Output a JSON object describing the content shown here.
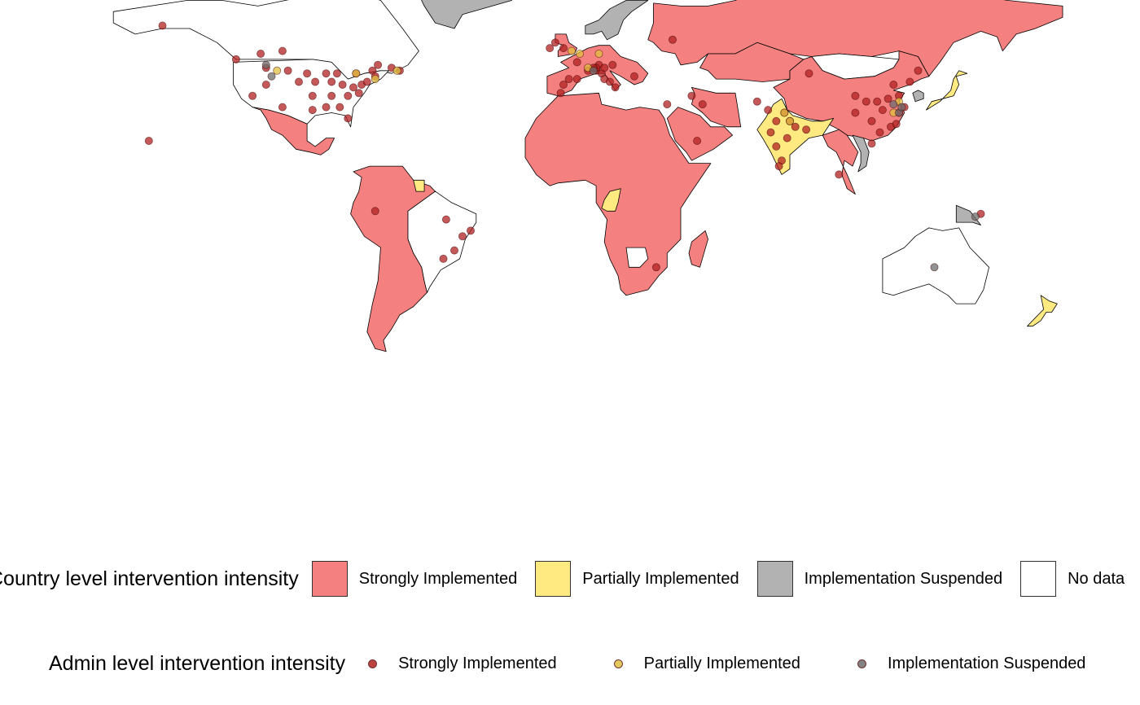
{
  "colors": {
    "strong": "#f58080",
    "partial": "#ffe981",
    "suspended": "#b2b2b2",
    "nodata": "#ffffff",
    "dot_strong": "#b22222",
    "dot_partial": "#e0c040",
    "dot_suspended": "#6e6e6e"
  },
  "legend_country": {
    "title": "Country level intervention intensity",
    "items": [
      {
        "label": "Strongly Implemented",
        "color": "#f58080"
      },
      {
        "label": "Partially Implemented",
        "color": "#ffe981"
      },
      {
        "label": "Implementation Suspended",
        "color": "#b2b2b2"
      },
      {
        "label": "No data",
        "color": "#ffffff"
      }
    ]
  },
  "legend_admin": {
    "title": "Admin level intervention intensity",
    "items": [
      {
        "label": "Strongly Implemented",
        "color": "#b22222"
      },
      {
        "label": "Partially Implemented",
        "color": "#e0c040"
      },
      {
        "label": "Implementation Suspended",
        "color": "#6e6e6e"
      }
    ]
  },
  "countries": [
    {
      "name": "Greenland",
      "status": "suspended"
    },
    {
      "name": "Russia",
      "status": "strong"
    },
    {
      "name": "China",
      "status": "strong"
    },
    {
      "name": "India",
      "status": "partial"
    },
    {
      "name": "Mongolia",
      "status": "nodata"
    },
    {
      "name": "Kazakhstan",
      "status": "strong"
    },
    {
      "name": "Iran",
      "status": "strong"
    },
    {
      "name": "Saudi Arabia",
      "status": "strong"
    },
    {
      "name": "Africa (most)",
      "status": "strong"
    },
    {
      "name": "Congo",
      "status": "partial"
    },
    {
      "name": "Namibia/Botswana area",
      "status": "nodata"
    },
    {
      "name": "Madagascar",
      "status": "strong"
    },
    {
      "name": "Europe west",
      "status": "strong"
    },
    {
      "name": "Scandinavia",
      "status": "suspended"
    },
    {
      "name": "UK",
      "status": "strong"
    },
    {
      "name": "Mexico",
      "status": "strong"
    },
    {
      "name": "South America west",
      "status": "strong"
    },
    {
      "name": "Brazil",
      "status": "nodata"
    },
    {
      "name": "Suriname",
      "status": "partial"
    },
    {
      "name": "Japan",
      "status": "partial"
    },
    {
      "name": "New Zealand",
      "status": "partial"
    },
    {
      "name": "Australia",
      "status": "nodata"
    },
    {
      "name": "Papua New Guinea",
      "status": "suspended"
    },
    {
      "name": "Canada",
      "status": "nodata"
    },
    {
      "name": "United States",
      "status": "nodata"
    },
    {
      "name": "Thailand/Myanmar",
      "status": "strong"
    },
    {
      "name": "Vietnam",
      "status": "suspended"
    },
    {
      "name": "Korea",
      "status": "suspended"
    }
  ],
  "admin_points": {
    "strong": [
      [
        -150,
        61
      ],
      [
        -123,
        49
      ],
      [
        -114,
        51
      ],
      [
        -106,
        52
      ],
      [
        -79,
        44
      ],
      [
        -73,
        45
      ],
      [
        -71,
        47
      ],
      [
        -63,
        45
      ],
      [
        -66,
        46
      ],
      [
        -112,
        46
      ],
      [
        -104,
        45
      ],
      [
        -97,
        44
      ],
      [
        -90,
        44
      ],
      [
        -86,
        44
      ],
      [
        -117,
        36
      ],
      [
        -112,
        40
      ],
      [
        -100,
        41
      ],
      [
        -94,
        41
      ],
      [
        -88,
        41
      ],
      [
        -84,
        40
      ],
      [
        -80,
        39
      ],
      [
        -77,
        40
      ],
      [
        -75,
        41
      ],
      [
        -72,
        43
      ],
      [
        -95,
        36
      ],
      [
        -88,
        36
      ],
      [
        -82,
        36
      ],
      [
        -78,
        37
      ],
      [
        -106,
        32
      ],
      [
        -95,
        31
      ],
      [
        -90,
        32
      ],
      [
        -85,
        32
      ],
      [
        -82,
        28
      ],
      [
        -155,
        20
      ],
      [
        -72,
        -5
      ],
      [
        -46,
        -8
      ],
      [
        -37,
        -12
      ],
      [
        -43,
        -19
      ],
      [
        -47,
        -22
      ],
      [
        -40,
        -14
      ],
      [
        -3,
        40
      ],
      [
        -4,
        37
      ],
      [
        -1,
        42
      ],
      [
        2,
        42
      ],
      [
        6,
        45
      ],
      [
        9,
        45
      ],
      [
        11,
        44
      ],
      [
        12,
        42
      ],
      [
        14,
        41
      ],
      [
        16,
        39
      ],
      [
        10,
        47
      ],
      [
        9,
        46
      ],
      [
        8,
        46
      ],
      [
        12,
        46
      ],
      [
        15,
        47
      ],
      [
        -6,
        55
      ],
      [
        -8,
        53
      ],
      [
        -3,
        53
      ],
      [
        2,
        48
      ],
      [
        37,
        56
      ],
      [
        23,
        43
      ],
      [
        35,
        33
      ],
      [
        44,
        36
      ],
      [
        48,
        33
      ],
      [
        68,
        34
      ],
      [
        72,
        31
      ],
      [
        75,
        27
      ],
      [
        78,
        30
      ],
      [
        80,
        27
      ],
      [
        73,
        23
      ],
      [
        75,
        18
      ],
      [
        77,
        13
      ],
      [
        76,
        11
      ],
      [
        79,
        21
      ],
      [
        82,
        25
      ],
      [
        86,
        24
      ],
      [
        98,
        8
      ],
      [
        120,
        30
      ],
      [
        114,
        31
      ],
      [
        116,
        35
      ],
      [
        120,
        36
      ],
      [
        112,
        34
      ],
      [
        108,
        34
      ],
      [
        104,
        30
      ],
      [
        110,
        27
      ],
      [
        113,
        23
      ],
      [
        117,
        25
      ],
      [
        119,
        26
      ],
      [
        122,
        32
      ],
      [
        110,
        19
      ],
      [
        104,
        36
      ],
      [
        87,
        44
      ],
      [
        127,
        45
      ],
      [
        124,
        41
      ],
      [
        118,
        40
      ],
      [
        31,
        -25
      ],
      [
        150,
        -6
      ],
      [
        46,
        20
      ]
    ],
    "partial": [
      [
        -108,
        45
      ],
      [
        -79,
        44
      ],
      [
        -72,
        42
      ],
      [
        -64,
        45
      ],
      [
        0,
        52
      ],
      [
        3,
        51
      ],
      [
        10,
        51
      ],
      [
        6,
        46
      ],
      [
        118,
        30
      ],
      [
        120,
        34
      ],
      [
        78,
        30
      ],
      [
        80,
        27
      ]
    ],
    "suspended": [
      [
        -112,
        47
      ],
      [
        -110,
        43
      ],
      [
        8,
        45
      ],
      [
        118,
        33
      ],
      [
        120,
        30
      ],
      [
        121,
        32
      ],
      [
        133,
        -25
      ],
      [
        148,
        -7
      ]
    ]
  }
}
